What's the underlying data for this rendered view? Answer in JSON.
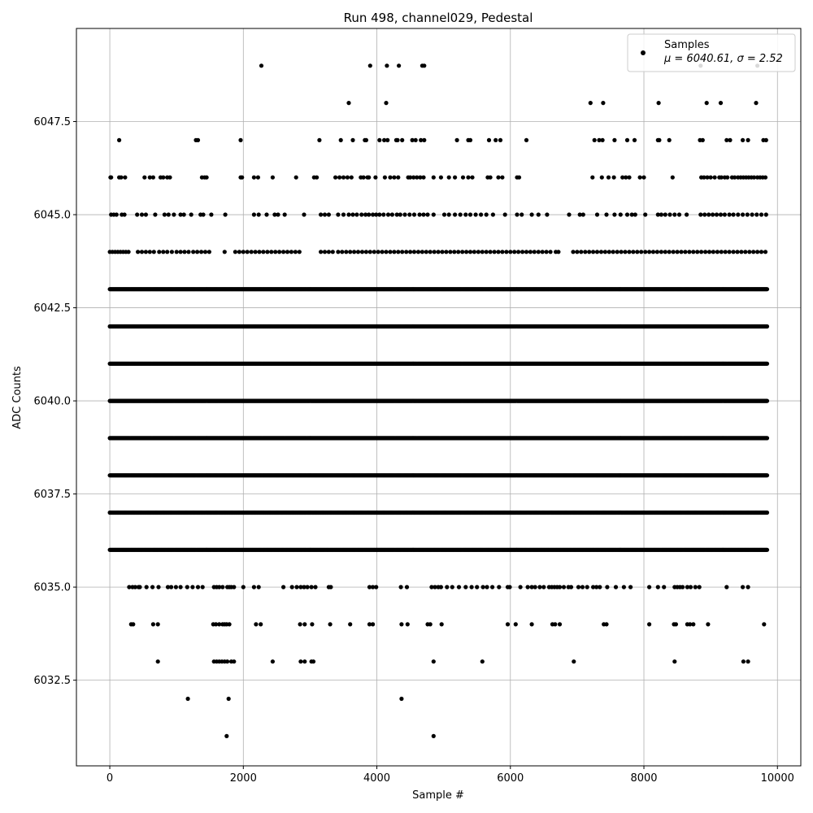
{
  "chart_data": {
    "type": "scatter",
    "title": "Run 498, channel029, Pedestal",
    "xlabel": "Sample #",
    "ylabel": "ADC Counts",
    "xlim": [
      -500,
      10350
    ],
    "ylim": [
      6030.2,
      6050.0
    ],
    "xticks": [
      0,
      2000,
      4000,
      6000,
      8000,
      10000
    ],
    "xtick_labels": [
      "0",
      "2000",
      "4000",
      "6000",
      "8000",
      "10000"
    ],
    "yticks": [
      6032.5,
      6035.0,
      6037.5,
      6040.0,
      6042.5,
      6045.0,
      6047.5
    ],
    "ytick_labels": [
      "6032.5",
      "6035.0",
      "6037.5",
      "6040.0",
      "6042.5",
      "6045.0",
      "6047.5"
    ],
    "grid": true,
    "legend": {
      "placement": "top-right",
      "label": "Samples",
      "stats": "μ = 6040.61, σ = 2.52"
    },
    "marker_color": "#000000",
    "sample_range": [
      0,
      9850
    ],
    "series": [
      {
        "name": "Samples",
        "levels": [
          {
            "y": 6049,
            "x": [
              2270,
              3900,
              4150,
              4330,
              4680,
              4710,
              8850,
              9700
            ]
          },
          {
            "y": 6048,
            "x": [
              3580,
              4140,
              7200,
              7390,
              8220,
              8940,
              9150,
              9680
            ]
          },
          {
            "y": 6047,
            "x": [
              140,
              1290,
              1320,
              1960,
              3140,
              3460,
              3640,
              3820,
              3840,
              4040,
              4110,
              4160,
              4290,
              4310,
              4380,
              4530,
              4580,
              4660,
              4710,
              5200,
              5370,
              5400,
              5680,
              5780,
              5850,
              6240,
              7260,
              7330,
              7380,
              7560,
              7750,
              7860,
              8210,
              8230,
              8380,
              8840,
              8880,
              9240,
              9290,
              9480,
              9560,
              9790,
              9830
            ]
          },
          {
            "y": 6046,
            "x": [
              10,
              20,
              140,
              170,
              230,
              520,
              600,
              650,
              760,
              800,
              860,
              900,
              1380,
              1420,
              1450,
              1960,
              1980,
              2160,
              2220,
              2440,
              2790,
              3060,
              3100,
              3380,
              3440,
              3500,
              3560,
              3620,
              3760,
              3800,
              3860,
              3880,
              3980,
              4120,
              4200,
              4260,
              4320,
              4470,
              4500,
              4550,
              4600,
              4650,
              4700,
              4850,
              4960,
              5080,
              5170,
              5290,
              5370,
              5430,
              5660,
              5700,
              5820,
              5880,
              6100,
              6130,
              7230,
              7370,
              7470,
              7550,
              7680,
              7730,
              7780,
              7940,
              8000,
              8430,
              8860,
              8900,
              8950,
              9000,
              9060,
              9130,
              9160,
              9210,
              9250,
              9320,
              9360,
              9410,
              9450,
              9490,
              9530,
              9570,
              9610,
              9650,
              9700,
              9740,
              9780,
              9820
            ]
          },
          {
            "y": 6045,
            "x": [
              20,
              60,
              100,
              180,
              220,
              410,
              480,
              540,
              680,
              820,
              880,
              960,
              1060,
              1110,
              1220,
              1360,
              1400,
              1520,
              1730,
              2160,
              2230,
              2350,
              2470,
              2520,
              2620,
              2910,
              3160,
              3220,
              3280,
              3420,
              3500,
              3580,
              3640,
              3700,
              3770,
              3830,
              3880,
              3940,
              3990,
              4040,
              4100,
              4170,
              4230,
              4300,
              4350,
              4420,
              4490,
              4560,
              4640,
              4700,
              4760,
              4850,
              5010,
              5080,
              5170,
              5250,
              5330,
              5400,
              5480,
              5560,
              5640,
              5740,
              5920,
              6100,
              6170,
              6320,
              6420,
              6550,
              6880,
              7040,
              7090,
              7300,
              7440,
              7560,
              7650,
              7750,
              7820,
              7870,
              8020,
              8210,
              8260,
              8320,
              8390,
              8460,
              8530,
              8640,
              8850,
              8910,
              8970,
              9030,
              9090,
              9150,
              9210,
              9280,
              9340,
              9410,
              9480,
              9550,
              9620,
              9690,
              9760,
              9830
            ]
          },
          {
            "y": 6044,
            "x": [
              0,
              40,
              80,
              120,
              160,
              200,
              240,
              280,
              420,
              480,
              540,
              600,
              660,
              740,
              800,
              860,
              930,
              1000,
              1060,
              1120,
              1180,
              1250,
              1310,
              1370,
              1430,
              1490,
              1720,
              1880,
              1940,
              2000,
              2060,
              2120,
              2180,
              2240,
              2300,
              2360,
              2420,
              2480,
              2540,
              2600,
              2660,
              2720,
              2780,
              2840,
              3160,
              3220,
              3280,
              3340,
              3420,
              3480,
              3540,
              3600,
              3660,
              3720,
              3780,
              3840,
              3900,
              3960,
              4020,
              4080,
              4140,
              4200,
              4260,
              4320,
              4380,
              4440,
              4500,
              4560,
              4620,
              4680,
              4740,
              4800,
              4860,
              4920,
              4980,
              5040,
              5100,
              5160,
              5220,
              5280,
              5340,
              5400,
              5460,
              5520,
              5580,
              5640,
              5700,
              5760,
              5820,
              5880,
              5940,
              6000,
              6060,
              6120,
              6180,
              6240,
              6300,
              6360,
              6420,
              6480,
              6540,
              6600,
              6680,
              6720,
              6940,
              7000,
              7060,
              7120,
              7180,
              7240,
              7300,
              7360,
              7420,
              7480,
              7540,
              7600,
              7660,
              7720,
              7780,
              7840,
              7900,
              7960,
              8020,
              8080,
              8140,
              8200,
              8260,
              8320,
              8380,
              8440,
              8500,
              8560,
              8620,
              8680,
              8740,
              8800,
              8860,
              8920,
              8980,
              9040,
              9100,
              9160,
              9220,
              9280,
              9340,
              9400,
              9460,
              9520,
              9580,
              9640,
              9700,
              9760,
              9820
            ]
          }
        ],
        "dense_levels": [
          6036,
          6037,
          6038,
          6039,
          6040,
          6041,
          6042,
          6043
        ],
        "sparse_low": [
          {
            "y": 6035,
            "x": [
              290,
              340,
              380,
              430,
              450,
              550,
              640,
              730,
              870,
              920,
              990,
              1060,
              1160,
              1240,
              1320,
              1390,
              1560,
              1600,
              1640,
              1690,
              1760,
              1790,
              1820,
              1860,
              2000,
              2160,
              2230,
              2600,
              2730,
              2800,
              2860,
              2910,
              2960,
              3020,
              3080,
              3280,
              3310,
              3890,
              3940,
              3990,
              4360,
              4450,
              4820,
              4870,
              4920,
              4960,
              5050,
              5130,
              5230,
              5330,
              5420,
              5500,
              5590,
              5650,
              5730,
              5830,
              5960,
              5990,
              6150,
              6260,
              6320,
              6370,
              6440,
              6500,
              6580,
              6620,
              6660,
              6700,
              6740,
              6800,
              6870,
              6910,
              7020,
              7080,
              7150,
              7240,
              7290,
              7340,
              7450,
              7580,
              7700,
              7800,
              8080,
              8210,
              8300,
              8460,
              8500,
              8540,
              8580,
              8650,
              8700,
              8770,
              8830,
              9240,
              9480,
              9560
            ]
          },
          {
            "y": 6034,
            "x": [
              320,
              350,
              650,
              720,
              1550,
              1590,
              1640,
              1690,
              1720,
              1750,
              1790,
              2190,
              2260,
              2850,
              2920,
              3030,
              3300,
              3600,
              3890,
              3940,
              4370,
              4460,
              4760,
              4800,
              4970,
              5960,
              6080,
              6320,
              6630,
              6670,
              6740,
              7400,
              7440,
              8080,
              8450,
              8480,
              8650,
              8690,
              8740,
              8960,
              9800
            ]
          },
          {
            "y": 6033,
            "x": [
              720,
              1560,
              1600,
              1640,
              1680,
              1720,
              1760,
              1820,
              1860,
              2440,
              2860,
              2920,
              3020,
              3050,
              4850,
              5580,
              6950,
              8460,
              9490,
              9560
            ]
          },
          {
            "y": 6032,
            "x": [
              1170,
              1780,
              4370
            ]
          },
          {
            "y": 6031,
            "x": [
              1750,
              4850
            ]
          }
        ]
      }
    ]
  }
}
